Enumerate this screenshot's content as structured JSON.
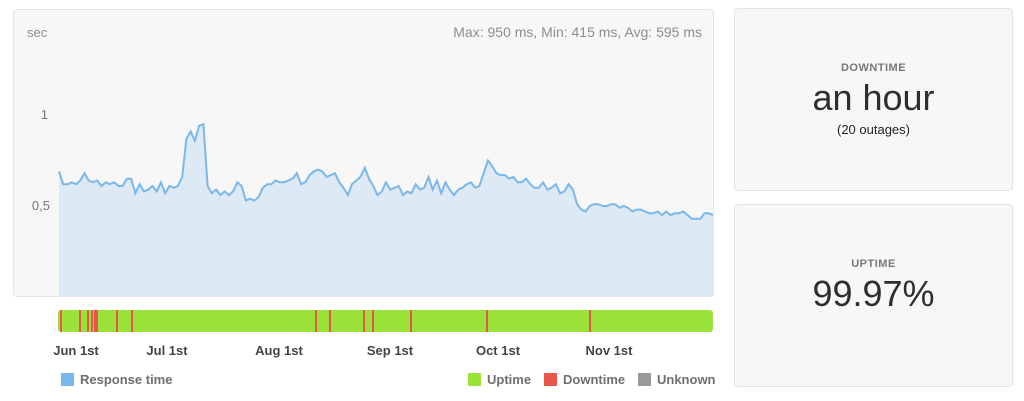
{
  "chart": {
    "stats": "Max: 950 ms, Min: 415 ms, Avg: 595 ms",
    "y_unit": "sec",
    "y_ticks": [
      "1",
      "0,5"
    ],
    "x_labels": [
      "Jun 1st",
      "Jul 1st",
      "Aug 1st",
      "Sep 1st",
      "Oct 1st",
      "Nov 1st"
    ]
  },
  "legend": {
    "response_time": "Response time",
    "uptime": "Uptime",
    "downtime": "Downtime",
    "unknown": "Unknown"
  },
  "downtime_card": {
    "label": "DOWNTIME",
    "value": "an hour",
    "sub": "(20 outages)"
  },
  "uptime_card": {
    "label": "UPTIME",
    "value": "99.97%"
  },
  "colors": {
    "response_line": "#7ab8ec",
    "response_fill": "#dde9f4",
    "uptime": "#9be33a",
    "downtime": "#e8574a",
    "unknown": "#999999"
  },
  "chart_data": {
    "type": "area",
    "title": "",
    "xlabel": "",
    "ylabel": "sec",
    "ylim": [
      0,
      1.4
    ],
    "x_tick_labels": [
      "Jun 1st",
      "Jul 1st",
      "Aug 1st",
      "Sep 1st",
      "Oct 1st",
      "Nov 1st"
    ],
    "series": [
      {
        "values": [
          0.69,
          0.62,
          0.62,
          0.63,
          0.62,
          0.64,
          0.68,
          0.64,
          0.63,
          0.64,
          0.61,
          0.63,
          0.62,
          0.63,
          0.61,
          0.61,
          0.65,
          0.65,
          0.57,
          0.62,
          0.58,
          0.59,
          0.61,
          0.58,
          0.63,
          0.57,
          0.61,
          0.6,
          0.61,
          0.66,
          0.87,
          0.91,
          0.86,
          0.94,
          0.95,
          0.61,
          0.57,
          0.59,
          0.56,
          0.58,
          0.56,
          0.58,
          0.63,
          0.61,
          0.53,
          0.54,
          0.53,
          0.55,
          0.6,
          0.62,
          0.62,
          0.64,
          0.63,
          0.63,
          0.64,
          0.65,
          0.68,
          0.62,
          0.63,
          0.67,
          0.69,
          0.7,
          0.69,
          0.66,
          0.67,
          0.68,
          0.63,
          0.6,
          0.56,
          0.62,
          0.64,
          0.66,
          0.71,
          0.65,
          0.61,
          0.56,
          0.58,
          0.63,
          0.59,
          0.6,
          0.61,
          0.56,
          0.58,
          0.57,
          0.62,
          0.59,
          0.6,
          0.66,
          0.59,
          0.64,
          0.57,
          0.63,
          0.59,
          0.56,
          0.59,
          0.6,
          0.62,
          0.63,
          0.6,
          0.61,
          0.68,
          0.75,
          0.72,
          0.68,
          0.67,
          0.67,
          0.65,
          0.66,
          0.63,
          0.63,
          0.65,
          0.62,
          0.6,
          0.6,
          0.63,
          0.59,
          0.6,
          0.62,
          0.57,
          0.58,
          0.62,
          0.59,
          0.51,
          0.48,
          0.47,
          0.5,
          0.51,
          0.51,
          0.5,
          0.5,
          0.51,
          0.51,
          0.49,
          0.5,
          0.49,
          0.47,
          0.48,
          0.48,
          0.47,
          0.46,
          0.46,
          0.47,
          0.45,
          0.47,
          0.45,
          0.46,
          0.46,
          0.47,
          0.45,
          0.43,
          0.43,
          0.43,
          0.46,
          0.46,
          0.45
        ]
      }
    ],
    "downtime_markers": [
      0.003,
      0.032,
      0.045,
      0.05,
      0.055,
      0.058,
      0.088,
      0.112,
      0.392,
      0.414,
      0.465,
      0.479,
      0.537,
      0.653,
      0.81
    ]
  }
}
